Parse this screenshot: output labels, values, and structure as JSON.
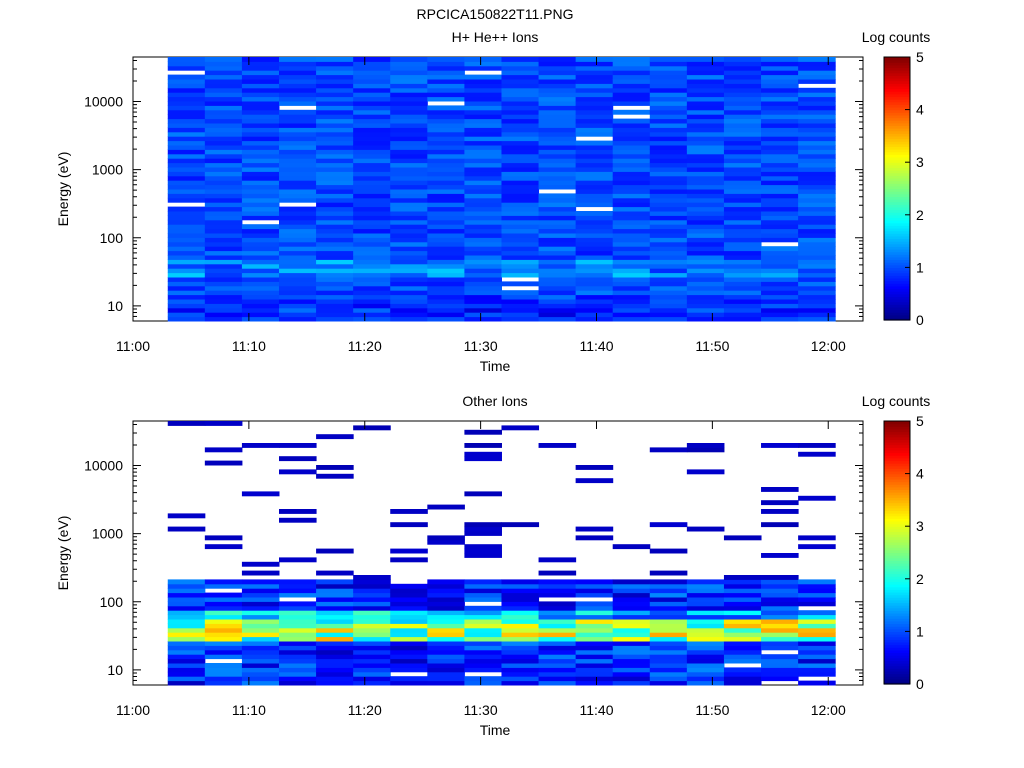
{
  "figure": {
    "title": "RPCICA150822T11.PNG"
  },
  "chart_data": [
    {
      "type": "heatmap",
      "title": "H+ He++ Ions",
      "xlabel": "Time",
      "ylabel": "Energy (eV)",
      "x_ticks": [
        "11:00",
        "11:10",
        "11:20",
        "11:30",
        "11:40",
        "11:50",
        "12:00"
      ],
      "x_range": [
        "11:00",
        "12:03"
      ],
      "y_ticks": [
        "10",
        "100",
        "1000",
        "10000"
      ],
      "y_scale": "log",
      "y_range": [
        6,
        45000
      ],
      "data_start": "11:03",
      "data_end": "12:00",
      "colorbar_label": "Log counts",
      "colorbar_ticks": [
        "0",
        "1",
        "2",
        "3",
        "4",
        "5"
      ],
      "colorbar_range": [
        0,
        5
      ],
      "colormap": [
        "#00007f",
        "#0000ff",
        "#007fff",
        "#00ffff",
        "#7fff7f",
        "#ffff00",
        "#ff7f00",
        "#ff0000",
        "#7f0000"
      ],
      "description_levels": "mostly 0.6-1.3 log counts across all energies; slightly higher (~1.5-1.8) near 30-50 eV"
    },
    {
      "type": "heatmap",
      "title": "Other Ions",
      "xlabel": "Time",
      "ylabel": "Energy (eV)",
      "x_ticks": [
        "11:00",
        "11:10",
        "11:20",
        "11:30",
        "11:40",
        "11:50",
        "12:00"
      ],
      "x_range": [
        "11:00",
        "12:03"
      ],
      "y_ticks": [
        "10",
        "100",
        "1000",
        "10000"
      ],
      "y_scale": "log",
      "y_range": [
        6,
        45000
      ],
      "data_start": "11:03",
      "data_end": "12:00",
      "colorbar_label": "Log counts",
      "colorbar_ticks": [
        "0",
        "1",
        "2",
        "3",
        "4",
        "5"
      ],
      "colorbar_range": [
        0,
        5
      ],
      "colormap": [
        "#00007f",
        "#0000ff",
        "#007fff",
        "#00ffff",
        "#7fff7f",
        "#ffff00",
        "#ff7f00",
        "#ff0000",
        "#7f0000"
      ],
      "description_levels": "dense coverage below ~200 eV (0.3-1.5), peak band at 30-50 eV reaching ~3.5 log counts; sparse single-count lines (~0.3) above 200 eV"
    }
  ]
}
